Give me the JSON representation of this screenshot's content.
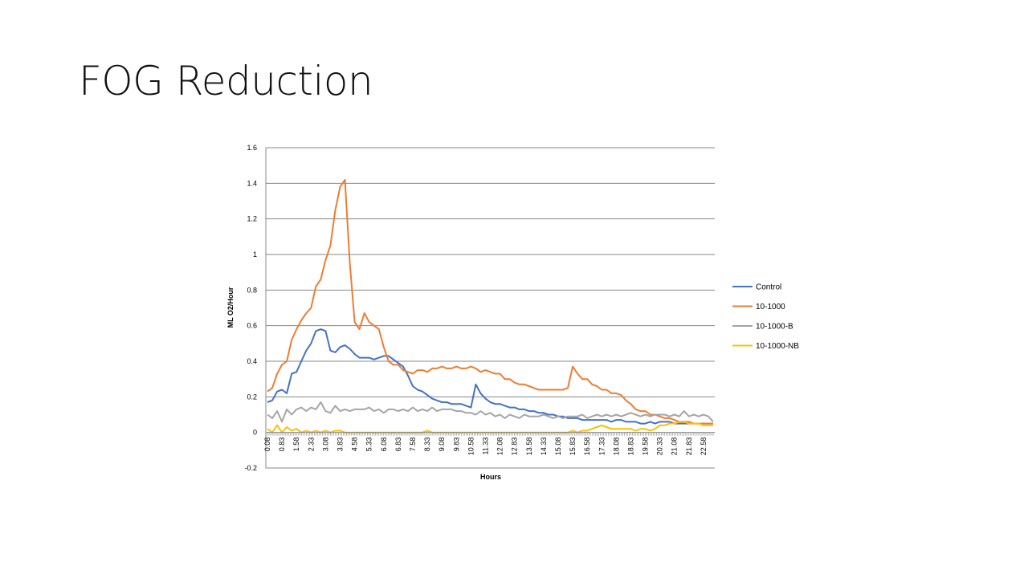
{
  "slide": {
    "title": "FOG Reduction"
  },
  "colors": {
    "Control": "#4472c4",
    "10-1000": "#ed7d31",
    "10-1000-B": "#a5a5a5",
    "10-1000-NB": "#ffc000",
    "grid": "#878787"
  },
  "chart_data": {
    "type": "line",
    "title": "",
    "xlabel": "Hours",
    "ylabel": "ML O2/Hour",
    "ylim": [
      -0.2,
      1.6
    ],
    "yticks": [
      -0.2,
      0,
      0.2,
      0.4,
      0.6,
      0.8,
      1,
      1.2,
      1.4,
      1.6
    ],
    "ytick_labels": [
      "-0.2",
      "0",
      "0.2",
      "0.4",
      "0.6",
      "0.8",
      "1",
      "1.2",
      "1.4",
      "1.6"
    ],
    "xlim": [
      0.08,
      23.08
    ],
    "xtick_labels": [
      "0.08",
      "0.83",
      "1.58",
      "2.33",
      "3.08",
      "3.83",
      "4.58",
      "5.33",
      "6.08",
      "6.83",
      "7.58",
      "8.33",
      "9.08",
      "9.83",
      "10.58",
      "11.33",
      "12.08",
      "12.83",
      "13.58",
      "14.33",
      "15.08",
      "15.83",
      "16.58",
      "17.33",
      "18.08",
      "18.83",
      "19.58",
      "20.33",
      "21.08",
      "21.83",
      "22.58"
    ],
    "legend_position": "right",
    "grid": "horizontal",
    "series": [
      {
        "name": "Control",
        "x": [
          0.08,
          0.33,
          0.58,
          0.83,
          1.08,
          1.33,
          1.58,
          1.83,
          2.08,
          2.33,
          2.58,
          2.83,
          3.08,
          3.33,
          3.58,
          3.83,
          4.08,
          4.33,
          4.58,
          4.83,
          5.08,
          5.33,
          5.58,
          5.83,
          6.08,
          6.33,
          6.58,
          6.83,
          7.08,
          7.33,
          7.58,
          7.83,
          8.08,
          8.33,
          8.58,
          8.83,
          9.08,
          9.33,
          9.58,
          9.83,
          10.08,
          10.33,
          10.58,
          10.83,
          11.08,
          11.33,
          11.58,
          11.83,
          12.08,
          12.33,
          12.58,
          12.83,
          13.08,
          13.33,
          13.58,
          13.83,
          14.08,
          14.33,
          14.58,
          14.83,
          15.08,
          15.33,
          15.58,
          15.83,
          16.08,
          16.33,
          16.58,
          16.83,
          17.08,
          17.33,
          17.58,
          17.83,
          18.08,
          18.33,
          18.58,
          18.83,
          19.08,
          19.33,
          19.58,
          19.83,
          20.08,
          20.33,
          20.58,
          20.83,
          21.08,
          21.33,
          21.58,
          21.83,
          22.08,
          22.33,
          22.58,
          22.83,
          23.08
        ],
        "values": [
          0.17,
          0.18,
          0.23,
          0.24,
          0.22,
          0.33,
          0.34,
          0.4,
          0.46,
          0.5,
          0.57,
          0.58,
          0.57,
          0.46,
          0.45,
          0.48,
          0.49,
          0.47,
          0.44,
          0.42,
          0.42,
          0.42,
          0.41,
          0.42,
          0.43,
          0.43,
          0.41,
          0.39,
          0.37,
          0.32,
          0.26,
          0.24,
          0.23,
          0.21,
          0.19,
          0.18,
          0.17,
          0.17,
          0.16,
          0.16,
          0.16,
          0.15,
          0.14,
          0.27,
          0.22,
          0.19,
          0.17,
          0.16,
          0.16,
          0.15,
          0.14,
          0.14,
          0.13,
          0.13,
          0.12,
          0.12,
          0.11,
          0.11,
          0.1,
          0.1,
          0.09,
          0.09,
          0.08,
          0.08,
          0.08,
          0.07,
          0.07,
          0.07,
          0.07,
          0.07,
          0.07,
          0.06,
          0.07,
          0.07,
          0.06,
          0.06,
          0.06,
          0.05,
          0.05,
          0.06,
          0.05,
          0.06,
          0.06,
          0.06,
          0.05,
          0.05,
          0.05,
          0.05,
          0.05,
          0.05,
          0.05,
          0.05,
          0.05
        ]
      },
      {
        "name": "10-1000",
        "x": [
          0.08,
          0.33,
          0.58,
          0.83,
          1.08,
          1.33,
          1.58,
          1.83,
          2.08,
          2.33,
          2.58,
          2.83,
          3.08,
          3.33,
          3.58,
          3.83,
          4.08,
          4.33,
          4.58,
          4.83,
          5.08,
          5.33,
          5.58,
          5.83,
          6.08,
          6.33,
          6.58,
          6.83,
          7.08,
          7.33,
          7.58,
          7.83,
          8.08,
          8.33,
          8.58,
          8.83,
          9.08,
          9.33,
          9.58,
          9.83,
          10.08,
          10.33,
          10.58,
          10.83,
          11.08,
          11.33,
          11.58,
          11.83,
          12.08,
          12.33,
          12.58,
          12.83,
          13.08,
          13.33,
          13.58,
          13.83,
          14.08,
          14.33,
          14.58,
          14.83,
          15.08,
          15.33,
          15.58,
          15.83,
          16.08,
          16.33,
          16.58,
          16.83,
          17.08,
          17.33,
          17.58,
          17.83,
          18.08,
          18.33,
          18.58,
          18.83,
          19.08,
          19.33,
          19.58,
          19.83,
          20.08,
          20.33,
          20.58,
          20.83,
          21.08,
          21.33,
          21.58,
          21.83,
          22.08,
          22.33,
          22.58,
          22.83,
          23.08
        ],
        "values": [
          0.23,
          0.25,
          0.33,
          0.38,
          0.4,
          0.52,
          0.58,
          0.63,
          0.67,
          0.7,
          0.82,
          0.86,
          0.97,
          1.05,
          1.25,
          1.38,
          1.42,
          0.95,
          0.62,
          0.58,
          0.67,
          0.62,
          0.6,
          0.58,
          0.48,
          0.4,
          0.38,
          0.38,
          0.35,
          0.34,
          0.33,
          0.35,
          0.35,
          0.34,
          0.36,
          0.36,
          0.37,
          0.36,
          0.36,
          0.37,
          0.36,
          0.36,
          0.37,
          0.36,
          0.34,
          0.35,
          0.34,
          0.33,
          0.33,
          0.3,
          0.3,
          0.28,
          0.27,
          0.27,
          0.26,
          0.25,
          0.24,
          0.24,
          0.24,
          0.24,
          0.24,
          0.24,
          0.25,
          0.37,
          0.33,
          0.3,
          0.3,
          0.27,
          0.26,
          0.24,
          0.24,
          0.22,
          0.22,
          0.21,
          0.18,
          0.16,
          0.13,
          0.12,
          0.12,
          0.1,
          0.1,
          0.09,
          0.08,
          0.08,
          0.07,
          0.06,
          0.06,
          0.06,
          0.05,
          0.05,
          0.05,
          0.05,
          0.05
        ]
      },
      {
        "name": "10-1000-B",
        "x": [
          0.08,
          0.33,
          0.58,
          0.83,
          1.08,
          1.33,
          1.58,
          1.83,
          2.08,
          2.33,
          2.58,
          2.83,
          3.08,
          3.33,
          3.58,
          3.83,
          4.08,
          4.33,
          4.58,
          4.83,
          5.08,
          5.33,
          5.58,
          5.83,
          6.08,
          6.33,
          6.58,
          6.83,
          7.08,
          7.33,
          7.58,
          7.83,
          8.08,
          8.33,
          8.58,
          8.83,
          9.08,
          9.33,
          9.58,
          9.83,
          10.08,
          10.33,
          10.58,
          10.83,
          11.08,
          11.33,
          11.58,
          11.83,
          12.08,
          12.33,
          12.58,
          12.83,
          13.08,
          13.33,
          13.58,
          13.83,
          14.08,
          14.33,
          14.58,
          14.83,
          15.08,
          15.33,
          15.58,
          15.83,
          16.08,
          16.33,
          16.58,
          16.83,
          17.08,
          17.33,
          17.58,
          17.83,
          18.08,
          18.33,
          18.58,
          18.83,
          19.08,
          19.33,
          19.58,
          19.83,
          20.08,
          20.33,
          20.58,
          20.83,
          21.08,
          21.33,
          21.58,
          21.83,
          22.08,
          22.33,
          22.58,
          22.83,
          23.08
        ],
        "values": [
          0.1,
          0.08,
          0.12,
          0.06,
          0.13,
          0.1,
          0.13,
          0.14,
          0.12,
          0.14,
          0.13,
          0.17,
          0.12,
          0.11,
          0.15,
          0.12,
          0.13,
          0.12,
          0.13,
          0.13,
          0.13,
          0.14,
          0.12,
          0.13,
          0.11,
          0.13,
          0.13,
          0.12,
          0.13,
          0.12,
          0.14,
          0.12,
          0.13,
          0.12,
          0.14,
          0.12,
          0.13,
          0.13,
          0.13,
          0.12,
          0.12,
          0.11,
          0.11,
          0.1,
          0.12,
          0.1,
          0.11,
          0.09,
          0.1,
          0.08,
          0.1,
          0.09,
          0.08,
          0.1,
          0.09,
          0.09,
          0.09,
          0.1,
          0.09,
          0.08,
          0.09,
          0.08,
          0.09,
          0.09,
          0.09,
          0.1,
          0.08,
          0.09,
          0.1,
          0.09,
          0.1,
          0.09,
          0.1,
          0.09,
          0.1,
          0.11,
          0.1,
          0.09,
          0.1,
          0.09,
          0.1,
          0.1,
          0.1,
          0.09,
          0.1,
          0.09,
          0.12,
          0.09,
          0.1,
          0.09,
          0.1,
          0.09,
          0.06
        ]
      },
      {
        "name": "10-1000-NB",
        "x": [
          0.08,
          0.33,
          0.58,
          0.83,
          1.08,
          1.33,
          1.58,
          1.83,
          2.08,
          2.33,
          2.58,
          2.83,
          3.08,
          3.33,
          3.58,
          3.83,
          4.08,
          4.33,
          4.58,
          4.83,
          5.08,
          5.33,
          5.58,
          5.83,
          6.08,
          6.33,
          6.58,
          6.83,
          7.08,
          7.33,
          7.58,
          7.83,
          8.08,
          8.33,
          8.58,
          8.83,
          9.08,
          9.33,
          9.58,
          9.83,
          10.08,
          10.33,
          10.58,
          10.83,
          11.08,
          11.33,
          11.58,
          11.83,
          12.08,
          12.33,
          12.58,
          12.83,
          13.08,
          13.33,
          13.58,
          13.83,
          14.08,
          14.33,
          14.58,
          14.83,
          15.08,
          15.33,
          15.58,
          15.83,
          16.08,
          16.33,
          16.58,
          16.83,
          17.08,
          17.33,
          17.58,
          17.83,
          18.08,
          18.33,
          18.58,
          18.83,
          19.08,
          19.33,
          19.58,
          19.83,
          20.08,
          20.33,
          20.58,
          20.83,
          21.08,
          21.33,
          21.58,
          21.83,
          22.08,
          22.33,
          22.58,
          22.83,
          23.08
        ],
        "values": [
          0.02,
          0.0,
          0.04,
          0.0,
          0.03,
          0.01,
          0.02,
          0.0,
          0.01,
          0.0,
          0.01,
          0.0,
          0.01,
          0.0,
          0.01,
          0.01,
          0.0,
          0.0,
          0.0,
          0.0,
          0.0,
          0.0,
          0.0,
          0.0,
          0.0,
          0.0,
          0.0,
          0.0,
          0.0,
          0.0,
          0.0,
          0.0,
          0.0,
          0.01,
          0.0,
          0.0,
          0.0,
          0.0,
          0.0,
          0.0,
          0.0,
          0.0,
          0.0,
          0.0,
          0.0,
          0.0,
          0.0,
          0.0,
          0.0,
          0.0,
          0.0,
          0.0,
          0.0,
          0.0,
          0.0,
          0.0,
          0.0,
          0.0,
          0.0,
          0.0,
          0.0,
          0.0,
          0.0,
          0.01,
          0.0,
          0.01,
          0.01,
          0.02,
          0.03,
          0.04,
          0.03,
          0.02,
          0.02,
          0.02,
          0.02,
          0.02,
          0.01,
          0.02,
          0.02,
          0.01,
          0.02,
          0.04,
          0.04,
          0.05,
          0.05,
          0.06,
          0.06,
          0.05,
          0.05,
          0.05,
          0.04,
          0.04,
          0.04
        ]
      }
    ]
  }
}
